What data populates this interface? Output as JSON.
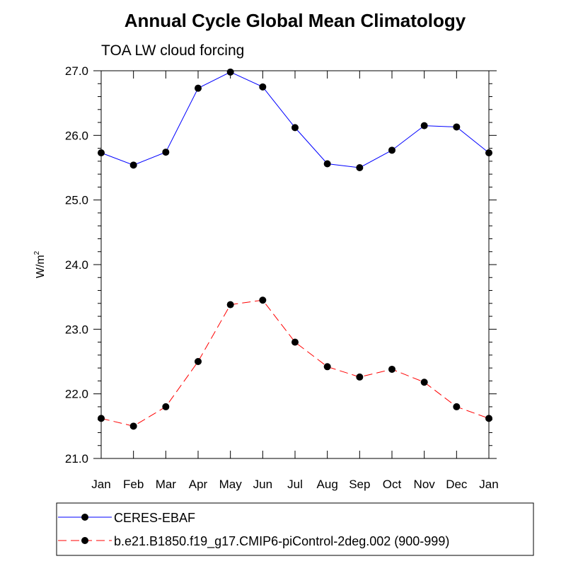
{
  "chart_data": {
    "type": "line",
    "title": "Annual Cycle Global Mean Climatology",
    "subtitle": "TOA LW cloud forcing",
    "ylabel": "W/m",
    "ylabel_sup": "2",
    "xlabel": "",
    "categories": [
      "Jan",
      "Feb",
      "Mar",
      "Apr",
      "May",
      "Jun",
      "Jul",
      "Aug",
      "Sep",
      "Oct",
      "Nov",
      "Dec",
      "Jan"
    ],
    "ylim": [
      21.0,
      27.0
    ],
    "yticks": [
      "21.0",
      "22.0",
      "23.0",
      "24.0",
      "25.0",
      "26.0",
      "27.0"
    ],
    "grid": false,
    "legend_position": "bottom",
    "series": [
      {
        "name": "CERES-EBAF",
        "color": "#0000ff",
        "dash": "solid",
        "marker": "circle",
        "values": [
          25.73,
          25.54,
          25.74,
          26.73,
          26.98,
          26.75,
          26.12,
          25.56,
          25.5,
          25.77,
          26.15,
          26.13,
          25.73
        ]
      },
      {
        "name": "b.e21.B1850.f19_g17.CMIP6-piControl-2deg.002 (900-999)",
        "color": "#ff0000",
        "dash": "dashed",
        "marker": "circle",
        "values": [
          21.62,
          21.5,
          21.8,
          22.5,
          23.38,
          23.45,
          22.8,
          22.42,
          22.26,
          22.38,
          22.18,
          21.8,
          21.62
        ]
      }
    ]
  }
}
